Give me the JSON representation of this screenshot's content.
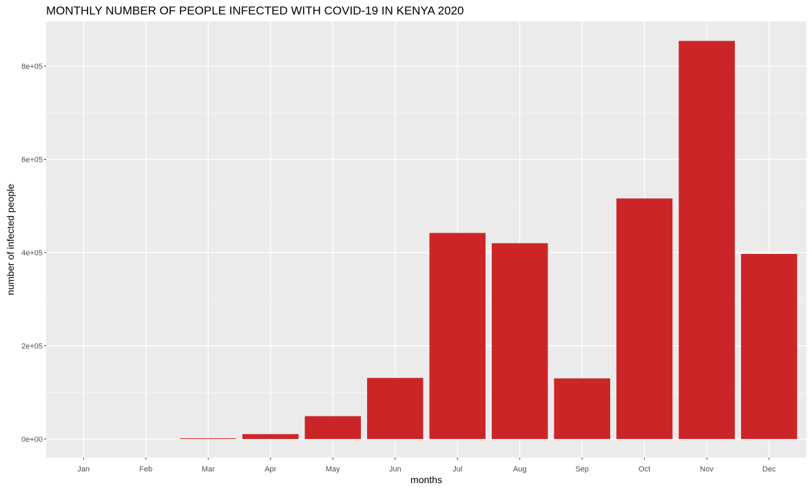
{
  "chart_data": {
    "type": "bar",
    "title": "MONTHLY NUMBER OF PEOPLE INFECTED WITH COVID-19 IN KENYA 2020",
    "xlabel": "months",
    "ylabel": "number of infected people",
    "categories": [
      "Jan",
      "Feb",
      "Mar",
      "Apr",
      "May",
      "Jun",
      "Jul",
      "Aug",
      "Sep",
      "Oct",
      "Nov",
      "Dec"
    ],
    "values": [
      0,
      0,
      1500,
      10500,
      49000,
      131000,
      442000,
      420000,
      130000,
      516000,
      854000,
      397000
    ],
    "ylim": [
      -40000,
      896000
    ],
    "yticks": [
      0,
      200000,
      400000,
      600000,
      800000
    ],
    "ytick_labels": [
      "0e+00",
      "2e+05",
      "4e+05",
      "6e+05",
      "8e+05"
    ],
    "grid": true,
    "colors": {
      "bar": "#cc2527",
      "panel": "#ebebeb",
      "grid_major": "#ffffff",
      "grid_minor": "#f5f5f5"
    }
  }
}
